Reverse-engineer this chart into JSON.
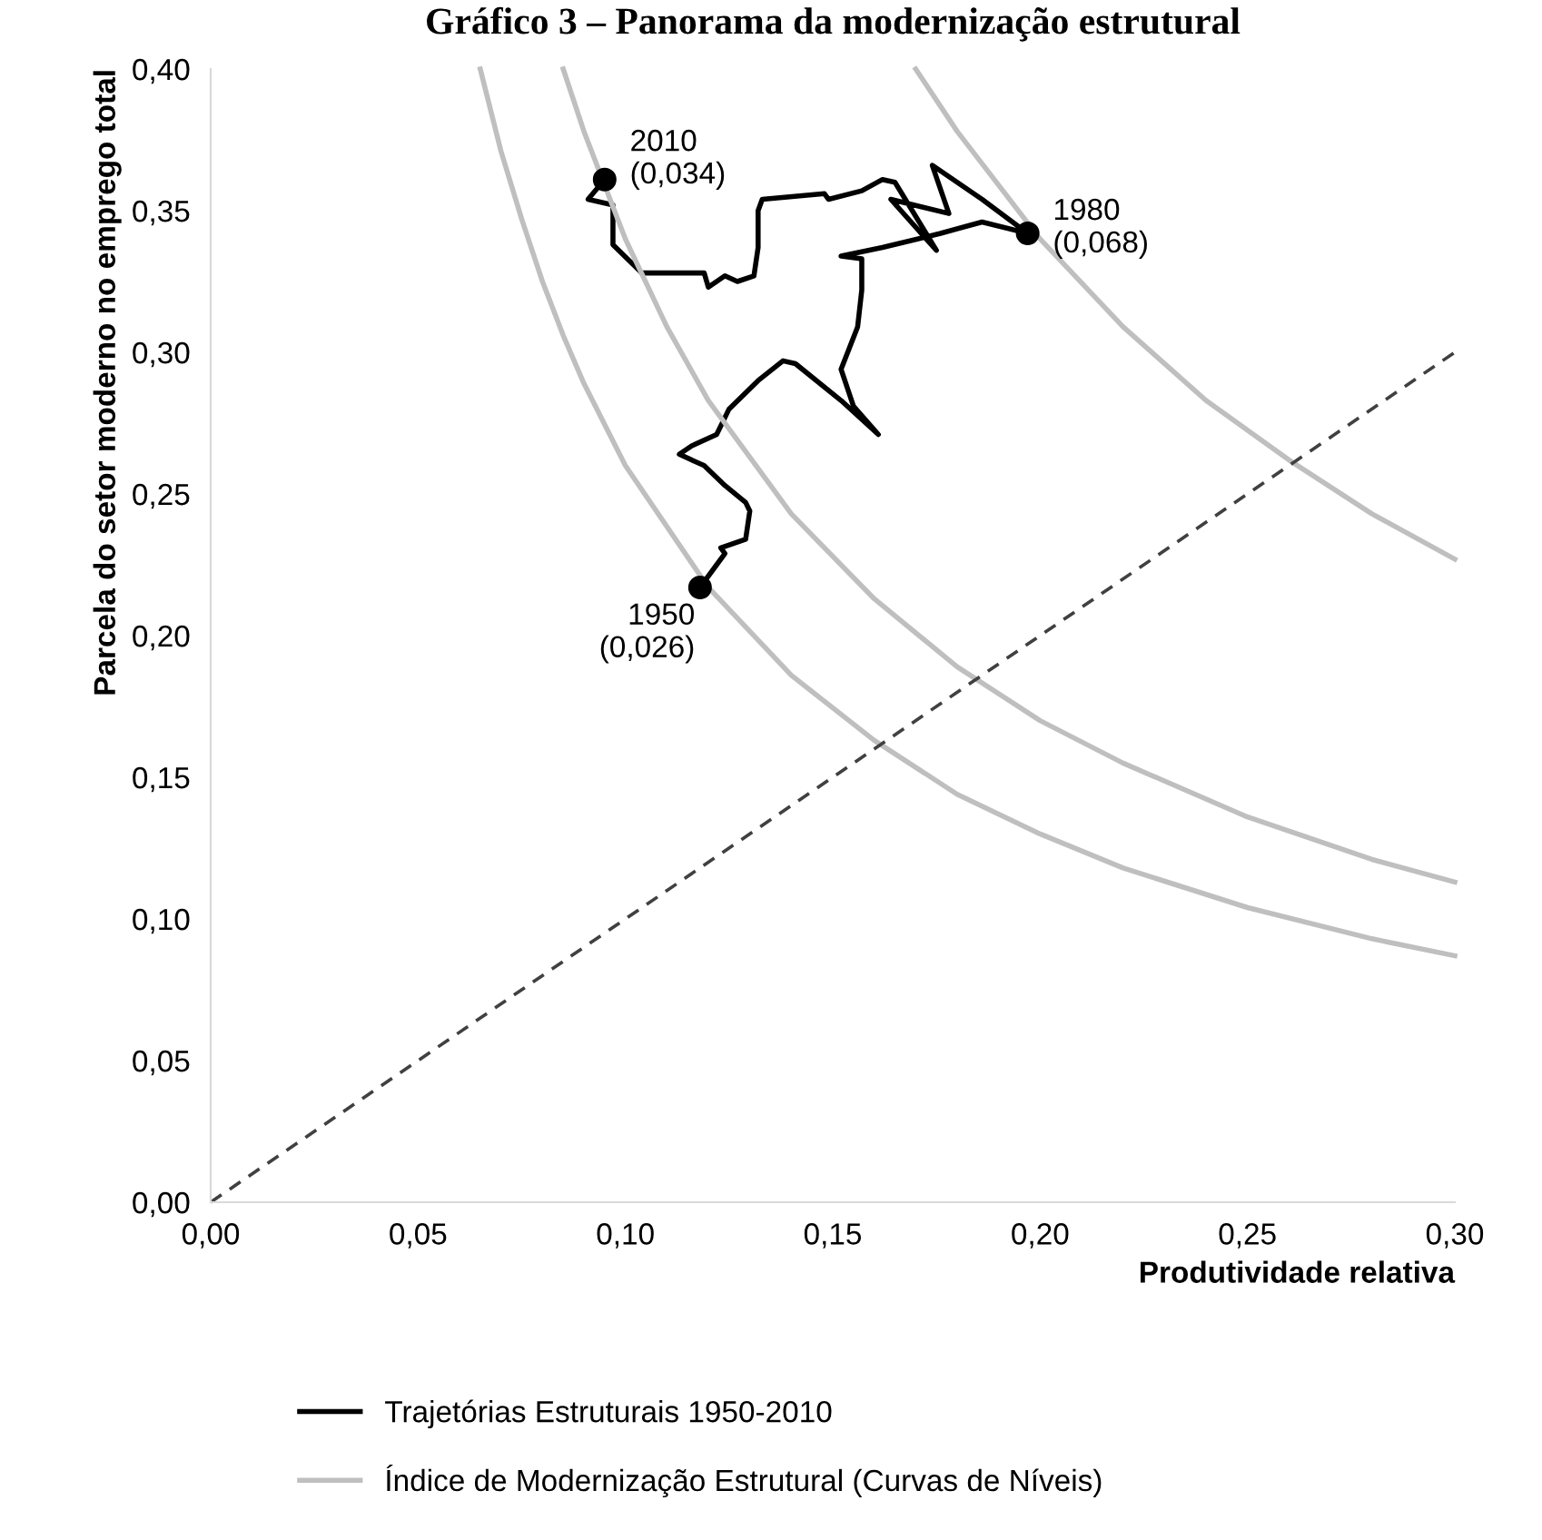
{
  "chart_data": {
    "type": "line",
    "title": "Gráfico 3 – Panorama da modernização estrutural",
    "xlabel": "Produtividade relativa",
    "ylabel": "Parcela do setor moderno no emprego total",
    "xlim": [
      0,
      0.3
    ],
    "ylim": [
      0,
      0.4
    ],
    "xticks": [
      {
        "value": 0,
        "label": "0,00"
      },
      {
        "value": 0.05,
        "label": "0,05"
      },
      {
        "value": 0.1,
        "label": "0,10"
      },
      {
        "value": 0.15,
        "label": "0,15"
      },
      {
        "value": 0.2,
        "label": "0,20"
      },
      {
        "value": 0.25,
        "label": "0,25"
      },
      {
        "value": 0.3,
        "label": "0,30"
      }
    ],
    "yticks": [
      {
        "value": 0,
        "label": "0,00"
      },
      {
        "value": 0.05,
        "label": "0,05"
      },
      {
        "value": 0.1,
        "label": "0,10"
      },
      {
        "value": 0.15,
        "label": "0,15"
      },
      {
        "value": 0.2,
        "label": "0,20"
      },
      {
        "value": 0.25,
        "label": "0,25"
      },
      {
        "value": 0.3,
        "label": "0,30"
      },
      {
        "value": 0.35,
        "label": "0,35"
      },
      {
        "value": 0.4,
        "label": "0,40"
      }
    ],
    "grid": false,
    "legend": "bottom left",
    "marker": "none",
    "series": [
      {
        "name": "Trajetórias Estruturais 1950-2010",
        "color": "#000000",
        "line_style": "solid",
        "x": [
          0.118,
          0.122,
          0.124,
          0.123,
          0.129,
          0.13,
          0.129,
          0.124,
          0.119,
          0.113,
          0.116,
          0.122,
          0.125,
          0.132,
          0.138,
          0.141,
          0.152,
          0.161,
          0.155,
          0.152,
          0.156,
          0.157,
          0.157,
          0.152,
          0.162,
          0.176,
          0.186,
          0.197,
          0.186,
          0.174,
          0.178,
          0.164,
          0.175,
          0.165,
          0.162,
          0.157,
          0.149,
          0.148,
          0.133,
          0.132,
          0.132,
          0.131,
          0.127,
          0.124,
          0.12,
          0.119,
          0.104,
          0.097,
          0.097,
          0.091,
          0.095
        ],
        "values": [
          0.217,
          0.225,
          0.229,
          0.231,
          0.234,
          0.244,
          0.247,
          0.253,
          0.26,
          0.264,
          0.267,
          0.271,
          0.28,
          0.29,
          0.297,
          0.296,
          0.283,
          0.271,
          0.281,
          0.294,
          0.309,
          0.322,
          0.333,
          0.334,
          0.337,
          0.342,
          0.346,
          0.342,
          0.354,
          0.366,
          0.349,
          0.354,
          0.336,
          0.36,
          0.361,
          0.357,
          0.354,
          0.356,
          0.354,
          0.35,
          0.337,
          0.327,
          0.325,
          0.327,
          0.323,
          0.328,
          0.328,
          0.338,
          0.352,
          0.354,
          0.361
        ]
      },
      {
        "name": "Índice de Modernização Estrutural (Curvas de Níveis)",
        "color": "#bfbfbf",
        "line_style": "solid",
        "x": [
          0.065,
          0.07,
          0.075,
          0.08,
          0.085,
          0.09,
          0.1,
          0.12,
          0.14,
          0.16,
          0.18,
          0.2,
          0.22,
          0.25,
          0.28,
          0.3
        ],
        "values": [
          0.4,
          0.371,
          0.347,
          0.325,
          0.306,
          0.289,
          0.26,
          0.217,
          0.186,
          0.163,
          0.144,
          0.13,
          0.118,
          0.104,
          0.093,
          0.087
        ]
      },
      {
        "color": "#bfbfbf",
        "line_style": "solid",
        "x": [
          0.085,
          0.09,
          0.1,
          0.11,
          0.12,
          0.14,
          0.16,
          0.18,
          0.2,
          0.22,
          0.25,
          0.28,
          0.3
        ],
        "values": [
          0.4,
          0.378,
          0.34,
          0.309,
          0.283,
          0.243,
          0.213,
          0.189,
          0.17,
          0.155,
          0.136,
          0.121,
          0.113
        ]
      },
      {
        "color": "#bfbfbf",
        "line_style": "solid",
        "x": [
          0.17,
          0.18,
          0.2,
          0.22,
          0.24,
          0.26,
          0.28,
          0.3
        ],
        "values": [
          0.4,
          0.378,
          0.34,
          0.309,
          0.283,
          0.262,
          0.243,
          0.227
        ]
      },
      {
        "color": "#404040",
        "line_style": "dashed",
        "x": [
          0,
          0.3
        ],
        "values": [
          0,
          0.3
        ]
      },
      {
        "type": "scatter",
        "marker": "circle",
        "color": "#000000",
        "x": [
          0.118,
          0.197,
          0.095
        ],
        "values": [
          0.217,
          0.342,
          0.361
        ]
      }
    ],
    "annotations": [
      {
        "text": "1950\n(0,026)",
        "x": 0.118,
        "y": 0.217
      },
      {
        "text": "1980\n(0,068)",
        "x": 0.197,
        "y": 0.342
      },
      {
        "text": "2010\n(0,034)",
        "x": 0.095,
        "y": 0.361
      }
    ]
  }
}
